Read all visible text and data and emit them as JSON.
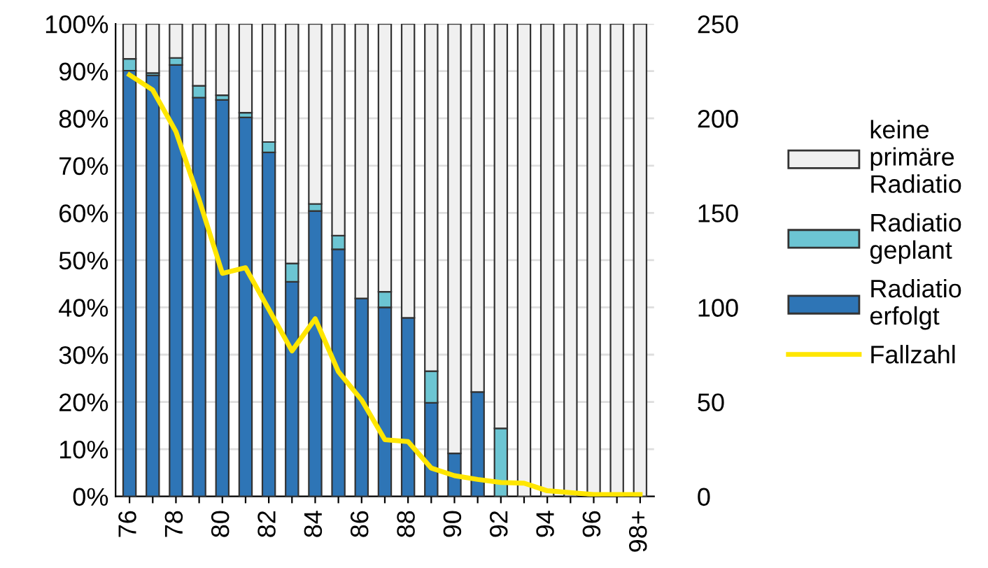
{
  "chart_data": {
    "type": "bar",
    "stacked": true,
    "categories": [
      "76",
      null,
      "78",
      null,
      "80",
      null,
      "82",
      null,
      "84",
      null,
      "86",
      null,
      "88",
      null,
      "90",
      null,
      "92",
      null,
      "94",
      null,
      "96",
      null,
      "98+"
    ],
    "series": [
      {
        "name": "Radiatio erfolgt",
        "color": "#2e75b6",
        "values": [
          90.1,
          89.1,
          91.3,
          84.4,
          83.9,
          80.2,
          72.8,
          45.4,
          60.4,
          52.3,
          41.9,
          40.0,
          37.8,
          19.8,
          9.1,
          22.1,
          0,
          0,
          0,
          0,
          0,
          0,
          0
        ]
      },
      {
        "name": "Radiatio geplant",
        "color": "#6cc5d3",
        "values": [
          2.5,
          0.5,
          1.5,
          2.5,
          1.0,
          1.0,
          2.2,
          3.9,
          1.5,
          2.9,
          0,
          3.3,
          0,
          6.7,
          0,
          0,
          14.4,
          0,
          0,
          0,
          0,
          0,
          0
        ]
      },
      {
        "name": "keine primäre Radiatio",
        "color": "#f0f0f0",
        "values": [
          7.4,
          10.4,
          7.2,
          13.1,
          15.1,
          18.8,
          25.0,
          50.7,
          38.1,
          44.8,
          58.1,
          56.7,
          62.2,
          73.5,
          90.9,
          77.9,
          85.6,
          100,
          100,
          100,
          100,
          100,
          100
        ]
      },
      {
        "name": "Fallzahl",
        "type": "line",
        "axis": "y2",
        "color": "#ffe600",
        "values": [
          223,
          215,
          193,
          157,
          118,
          121,
          99,
          77,
          94,
          66,
          51,
          30,
          29,
          15,
          11,
          9,
          7.4,
          7,
          3,
          2,
          1,
          1,
          1
        ]
      }
    ],
    "ylim": [
      0,
      100
    ],
    "yticks": [
      {
        "value": 0,
        "label": "0%"
      },
      {
        "value": 10,
        "label": "10%"
      },
      {
        "value": 20,
        "label": "20%"
      },
      {
        "value": 30,
        "label": "30%"
      },
      {
        "value": 40,
        "label": "40%"
      },
      {
        "value": 50,
        "label": "50%"
      },
      {
        "value": 60,
        "label": "60%"
      },
      {
        "value": 70,
        "label": "70%"
      },
      {
        "value": 80,
        "label": "80%"
      },
      {
        "value": 90,
        "label": "90%"
      },
      {
        "value": 100,
        "label": "100%"
      }
    ],
    "y2lim": [
      0,
      250
    ],
    "y2ticks": [
      0,
      50,
      100,
      150,
      200,
      250
    ],
    "grid": "y",
    "legend": "right"
  }
}
